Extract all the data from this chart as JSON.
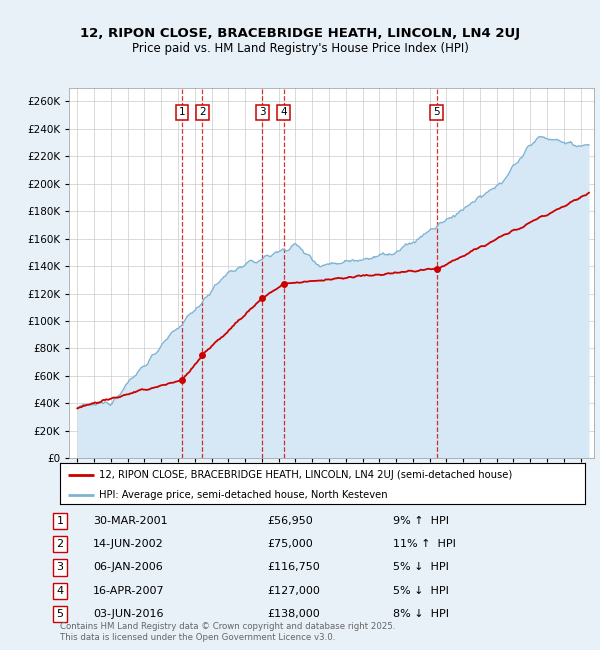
{
  "title": "12, RIPON CLOSE, BRACEBRIDGE HEATH, LINCOLN, LN4 2UJ",
  "subtitle": "Price paid vs. HM Land Registry's House Price Index (HPI)",
  "ylim": [
    0,
    270000
  ],
  "yticks": [
    0,
    20000,
    40000,
    60000,
    80000,
    100000,
    120000,
    140000,
    160000,
    180000,
    200000,
    220000,
    240000,
    260000
  ],
  "xlim_start": 1994.5,
  "xlim_end": 2025.8,
  "transactions": [
    {
      "num": 1,
      "date": "30-MAR-2001",
      "price": 56950,
      "pct": "9%",
      "dir": "↑",
      "year": 2001.24
    },
    {
      "num": 2,
      "date": "14-JUN-2002",
      "price": 75000,
      "pct": "11%",
      "dir": "↑",
      "year": 2002.45
    },
    {
      "num": 3,
      "date": "06-JAN-2006",
      "price": 116750,
      "pct": "5%",
      "dir": "↓",
      "year": 2006.03
    },
    {
      "num": 4,
      "date": "16-APR-2007",
      "price": 127000,
      "pct": "5%",
      "dir": "↓",
      "year": 2007.29
    },
    {
      "num": 5,
      "date": "03-JUN-2016",
      "price": 138000,
      "pct": "8%",
      "dir": "↓",
      "year": 2016.42
    }
  ],
  "property_color": "#cc0000",
  "hpi_color": "#7fb3d3",
  "hpi_fill_color": "#d6e8f5",
  "grid_color": "#cccccc",
  "background_color": "#e8f0f8",
  "plot_bg_color": "#ffffff",
  "footer": "Contains HM Land Registry data © Crown copyright and database right 2025.\nThis data is licensed under the Open Government Licence v3.0.",
  "legend_property": "12, RIPON CLOSE, BRACEBRIDGE HEATH, LINCOLN, LN4 2UJ (semi-detached house)",
  "legend_hpi": "HPI: Average price, semi-detached house, North Kesteven"
}
